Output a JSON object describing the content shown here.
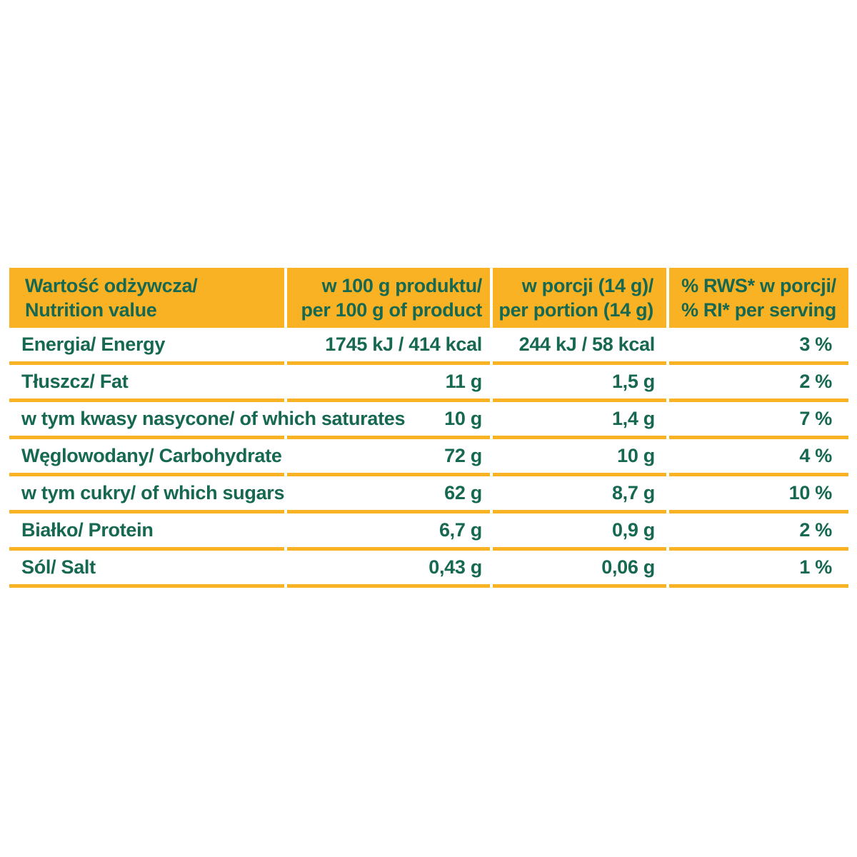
{
  "nutrition_table": {
    "header": {
      "col1_line1": "Wartość odżywcza/",
      "col1_line2": "Nutrition value",
      "col2_line1": "w 100 g produktu/",
      "col2_line2": "per 100 g of product",
      "col3_line1": "w porcji (14 g)/",
      "col3_line2": "per portion (14 g)",
      "col4_line1": "% RWS* w porcji/",
      "col4_line2": "% RI* per serving"
    },
    "rows": [
      {
        "label": "Energia/ Energy",
        "per_100g": "1745 kJ / 414 kcal",
        "per_portion": "244 kJ / 58 kcal",
        "percent_ri": "3 %"
      },
      {
        "label": "Tłuszcz/ Fat",
        "per_100g": "11 g",
        "per_portion": "1,5 g",
        "percent_ri": "2 %"
      },
      {
        "label": "w tym kwasy nasycone/ of which saturates",
        "per_100g": "10 g",
        "per_portion": "1,4 g",
        "percent_ri": "7 %"
      },
      {
        "label": "Węglowodany/ Carbohydrate",
        "per_100g": "72 g",
        "per_portion": "10 g",
        "percent_ri": "4 %"
      },
      {
        "label": "w tym cukry/ of which sugars",
        "per_100g": "62 g",
        "per_portion": "8,7 g",
        "percent_ri": "10 %"
      },
      {
        "label": "Białko/ Protein",
        "per_100g": "6,7 g",
        "per_portion": "0,9 g",
        "percent_ri": "2 %"
      },
      {
        "label": "Sól/ Salt",
        "per_100g": "0,43 g",
        "per_portion": "0,06 g",
        "percent_ri": "1 %"
      }
    ],
    "colors": {
      "accent_yellow": "#F8B224",
      "text_green": "#166851",
      "background": "#FFFFFF"
    }
  }
}
